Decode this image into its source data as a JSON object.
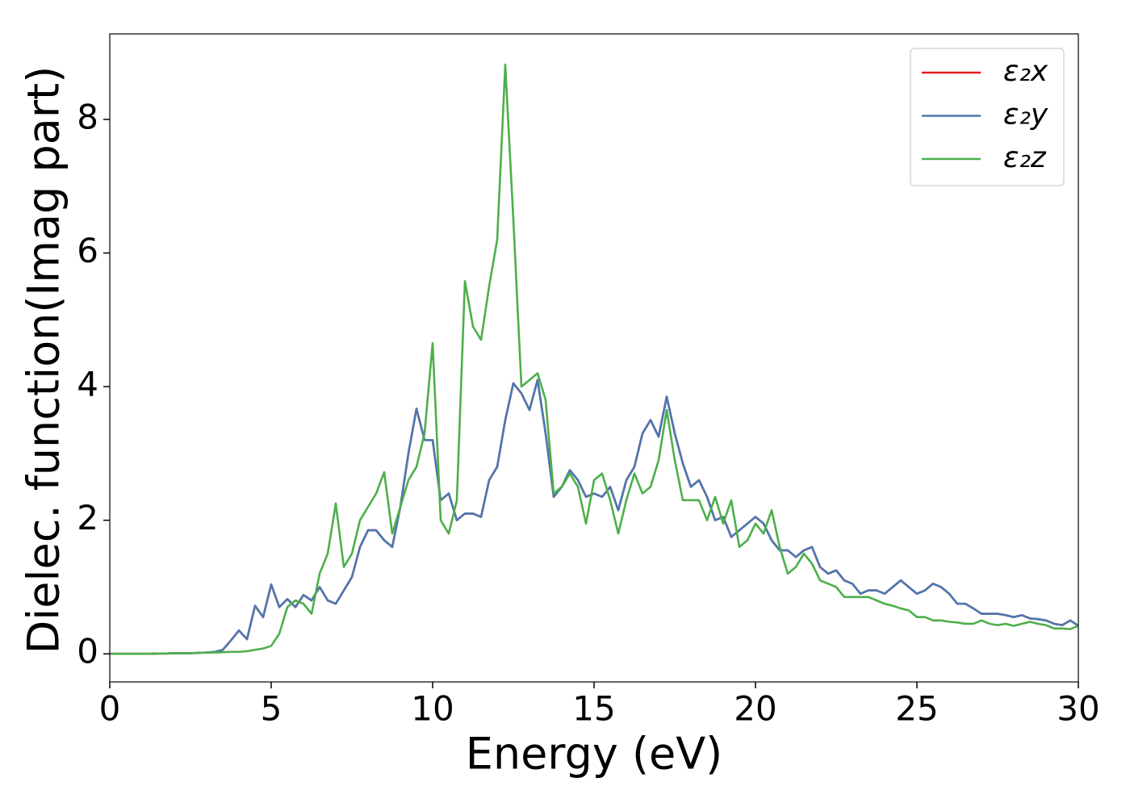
{
  "chart_data": {
    "type": "line",
    "x_label": "Energy (eV)",
    "y_label": "Dielec. function(Imag part)",
    "xlim": [
      0,
      30
    ],
    "xticks": [
      0,
      5,
      10,
      15,
      20,
      25,
      30
    ],
    "ylim": [
      -0.42,
      9.28
    ],
    "yticks": [
      0,
      2,
      4,
      6,
      8
    ],
    "legend": "upper right",
    "x": [
      0,
      0.25,
      0.5,
      0.75,
      1,
      1.25,
      1.5,
      1.75,
      2,
      2.25,
      2.5,
      2.75,
      3,
      3.25,
      3.5,
      3.75,
      4,
      4.25,
      4.5,
      4.75,
      5,
      5.25,
      5.5,
      5.75,
      6,
      6.25,
      6.5,
      6.75,
      7,
      7.25,
      7.5,
      7.75,
      8,
      8.25,
      8.5,
      8.75,
      9,
      9.25,
      9.5,
      9.75,
      10,
      10.25,
      10.5,
      10.75,
      11,
      11.25,
      11.5,
      11.75,
      12,
      12.25,
      12.5,
      12.75,
      13,
      13.25,
      13.5,
      13.75,
      14,
      14.25,
      14.5,
      14.75,
      15,
      15.25,
      15.5,
      15.75,
      16,
      16.25,
      16.5,
      16.75,
      17,
      17.25,
      17.5,
      17.75,
      18,
      18.25,
      18.5,
      18.75,
      19,
      19.25,
      19.5,
      19.75,
      20,
      20.25,
      20.5,
      20.75,
      21,
      21.25,
      21.5,
      21.75,
      22,
      22.25,
      22.5,
      22.75,
      23,
      23.25,
      23.5,
      23.75,
      24,
      24.25,
      24.5,
      24.75,
      25,
      25.25,
      25.5,
      25.75,
      26,
      26.25,
      26.5,
      26.75,
      27,
      27.25,
      27.5,
      27.75,
      28,
      28.25,
      28.5,
      28.75,
      29,
      29.25,
      29.5,
      29.75,
      30
    ],
    "series": [
      {
        "name": "ε₂x",
        "color": "#e41a1c",
        "values": [
          0,
          0,
          0,
          0,
          0,
          0,
          0.005,
          0.005,
          0.01,
          0.01,
          0.01,
          0.015,
          0.02,
          0.03,
          0.06,
          0.2,
          0.35,
          0.22,
          0.72,
          0.55,
          1.04,
          0.7,
          0.82,
          0.7,
          0.88,
          0.8,
          1.0,
          0.8,
          0.75,
          0.95,
          1.15,
          1.6,
          1.85,
          1.85,
          1.7,
          1.6,
          2.2,
          3.0,
          3.67,
          3.2,
          3.2,
          2.3,
          2.4,
          2.0,
          2.1,
          2.1,
          2.05,
          2.6,
          2.8,
          3.5,
          4.05,
          3.9,
          3.65,
          4.1,
          3.3,
          2.35,
          2.5,
          2.75,
          2.6,
          2.35,
          2.4,
          2.35,
          2.5,
          2.15,
          2.6,
          2.8,
          3.3,
          3.5,
          3.25,
          3.85,
          3.3,
          2.85,
          2.5,
          2.6,
          2.35,
          2.0,
          2.05,
          1.75,
          1.85,
          1.95,
          2.05,
          1.95,
          1.7,
          1.55,
          1.55,
          1.45,
          1.55,
          1.6,
          1.3,
          1.2,
          1.25,
          1.1,
          1.05,
          0.9,
          0.95,
          0.95,
          0.9,
          1.0,
          1.1,
          1.0,
          0.9,
          0.95,
          1.05,
          1.0,
          0.9,
          0.75,
          0.75,
          0.68,
          0.6,
          0.6,
          0.6,
          0.58,
          0.55,
          0.58,
          0.53,
          0.52,
          0.5,
          0.45,
          0.43,
          0.5,
          0.42
        ]
      },
      {
        "name": "ε₂y",
        "color": "#4a78b0",
        "values": [
          0,
          0,
          0,
          0,
          0,
          0,
          0.005,
          0.005,
          0.01,
          0.01,
          0.01,
          0.015,
          0.02,
          0.03,
          0.06,
          0.2,
          0.35,
          0.22,
          0.72,
          0.55,
          1.04,
          0.7,
          0.82,
          0.7,
          0.88,
          0.8,
          1.0,
          0.8,
          0.75,
          0.95,
          1.15,
          1.6,
          1.85,
          1.85,
          1.7,
          1.6,
          2.2,
          3.0,
          3.67,
          3.2,
          3.2,
          2.3,
          2.4,
          2.0,
          2.1,
          2.1,
          2.05,
          2.6,
          2.8,
          3.5,
          4.05,
          3.9,
          3.65,
          4.1,
          3.3,
          2.35,
          2.5,
          2.75,
          2.6,
          2.35,
          2.4,
          2.35,
          2.5,
          2.15,
          2.6,
          2.8,
          3.3,
          3.5,
          3.25,
          3.85,
          3.3,
          2.85,
          2.5,
          2.6,
          2.35,
          2.0,
          2.05,
          1.75,
          1.85,
          1.95,
          2.05,
          1.95,
          1.7,
          1.55,
          1.55,
          1.45,
          1.55,
          1.6,
          1.3,
          1.2,
          1.25,
          1.1,
          1.05,
          0.9,
          0.95,
          0.95,
          0.9,
          1.0,
          1.1,
          1.0,
          0.9,
          0.95,
          1.05,
          1.0,
          0.9,
          0.75,
          0.75,
          0.68,
          0.6,
          0.6,
          0.6,
          0.58,
          0.55,
          0.58,
          0.53,
          0.52,
          0.5,
          0.45,
          0.43,
          0.5,
          0.42
        ]
      },
      {
        "name": "ε₂z",
        "color": "#4daf4a",
        "values": [
          0,
          0,
          0,
          0,
          0,
          0,
          0.005,
          0.005,
          0.01,
          0.01,
          0.01,
          0.015,
          0.02,
          0.02,
          0.025,
          0.03,
          0.03,
          0.04,
          0.06,
          0.08,
          0.12,
          0.3,
          0.7,
          0.8,
          0.75,
          0.6,
          1.2,
          1.5,
          2.25,
          1.3,
          1.5,
          2.0,
          2.2,
          2.4,
          2.72,
          1.8,
          2.2,
          2.6,
          2.8,
          3.3,
          4.65,
          2.0,
          1.8,
          2.3,
          5.58,
          4.9,
          4.7,
          5.5,
          6.2,
          8.82,
          6.5,
          4.0,
          4.1,
          4.2,
          3.8,
          2.4,
          2.5,
          2.7,
          2.5,
          1.95,
          2.6,
          2.7,
          2.3,
          1.8,
          2.3,
          2.7,
          2.4,
          2.5,
          2.9,
          3.65,
          2.9,
          2.3,
          2.3,
          2.3,
          2.0,
          2.35,
          1.95,
          2.3,
          1.6,
          1.7,
          1.95,
          1.8,
          2.15,
          1.6,
          1.2,
          1.3,
          1.5,
          1.35,
          1.1,
          1.05,
          1.0,
          0.85,
          0.85,
          0.85,
          0.85,
          0.8,
          0.75,
          0.72,
          0.68,
          0.65,
          0.55,
          0.55,
          0.5,
          0.5,
          0.48,
          0.47,
          0.45,
          0.45,
          0.5,
          0.45,
          0.43,
          0.45,
          0.42,
          0.45,
          0.48,
          0.45,
          0.43,
          0.38,
          0.38,
          0.37,
          0.42
        ]
      }
    ]
  }
}
